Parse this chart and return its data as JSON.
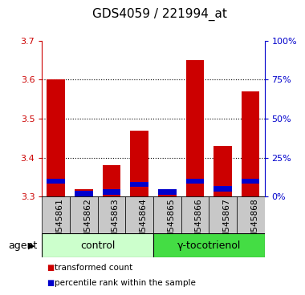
{
  "title": "GDS4059 / 221994_at",
  "samples": [
    "GSM545861",
    "GSM545862",
    "GSM545863",
    "GSM545864",
    "GSM545865",
    "GSM545866",
    "GSM545867",
    "GSM545868"
  ],
  "red_values": [
    3.6,
    3.32,
    3.38,
    3.47,
    3.32,
    3.65,
    3.43,
    3.57
  ],
  "blue_percentile": [
    10,
    2,
    3,
    8,
    3,
    10,
    5,
    10
  ],
  "ymin": 3.3,
  "ymax": 3.7,
  "yticks": [
    3.3,
    3.4,
    3.5,
    3.6,
    3.7
  ],
  "right_yticks": [
    0,
    25,
    50,
    75,
    100
  ],
  "bar_width": 0.65,
  "red_color": "#CC0000",
  "blue_color": "#0000CC",
  "bg_color": "#FFFFFF",
  "agent_labels": [
    "control",
    "γ-tocotrienol"
  ],
  "ctrl_color": "#CCFFCC",
  "treat_color": "#44DD44",
  "title_fontsize": 11,
  "tick_fontsize": 8,
  "legend_fontsize": 7.5,
  "agent_fontsize": 9,
  "gray_box": "#C8C8C8"
}
